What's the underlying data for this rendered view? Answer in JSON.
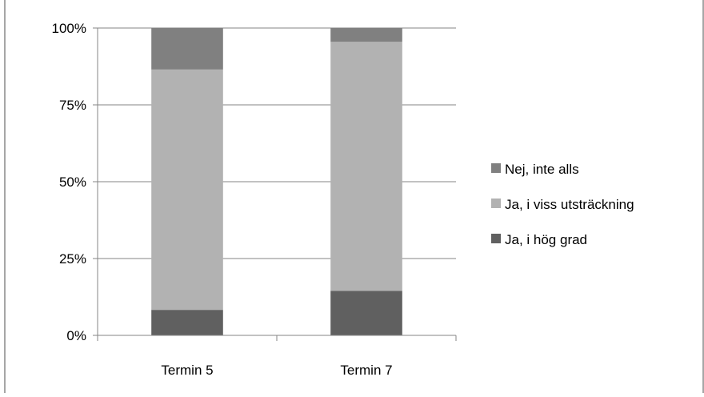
{
  "chart_data": {
    "type": "bar",
    "stacked": true,
    "percent": true,
    "categories": [
      "Termin 5",
      "Termin 7"
    ],
    "series": [
      {
        "name": "Ja, i hög grad",
        "color": "#606060",
        "values": [
          8.3,
          14.5
        ]
      },
      {
        "name": "Ja, i viss utsträckning",
        "color": "#b2b2b2",
        "values": [
          78.2,
          81.0
        ]
      },
      {
        "name": "Nej, inte alls",
        "color": "#808080",
        "values": [
          13.5,
          4.5
        ]
      }
    ],
    "yticks": [
      "0%",
      "25%",
      "50%",
      "75%",
      "100%"
    ],
    "ylim": [
      0,
      100
    ],
    "grid": true,
    "legend_position": "right",
    "legend_order": [
      "Nej, inte alls",
      "Ja, i viss utsträckning",
      "Ja, i hög grad"
    ]
  }
}
